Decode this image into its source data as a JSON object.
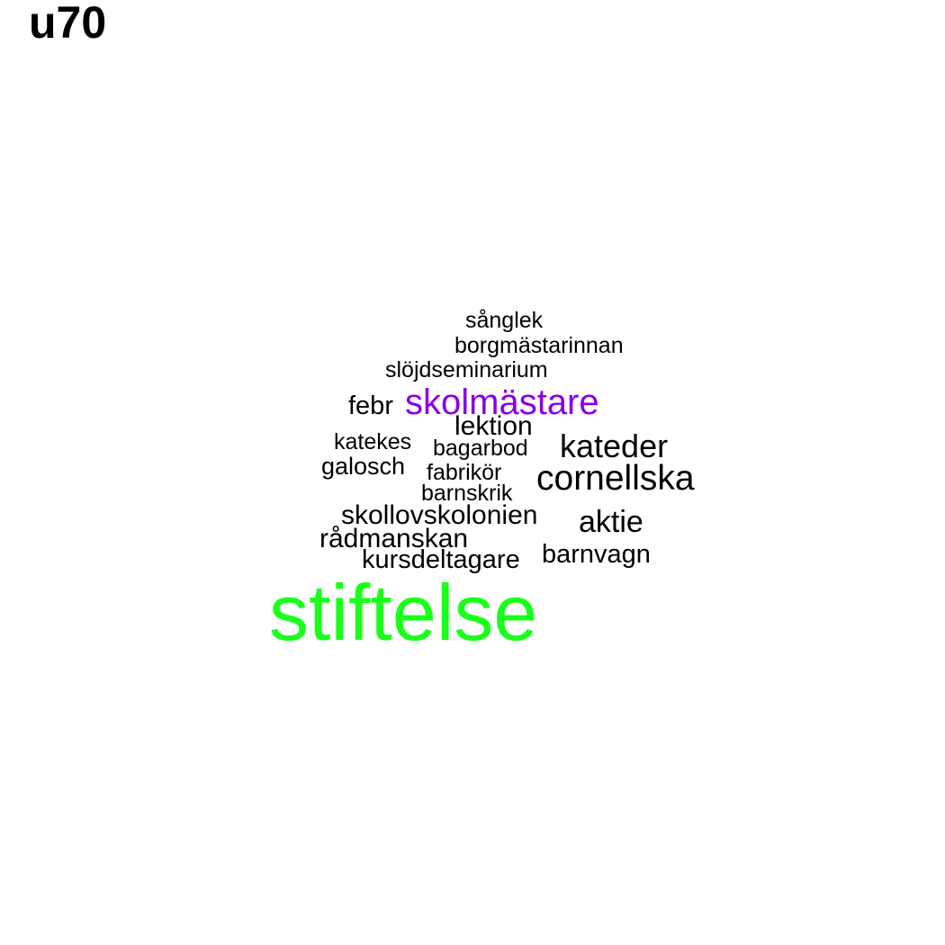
{
  "title": "u70",
  "colors": {
    "default_word": "#000000",
    "skolmastare": "#8a00e6",
    "stiftelse": "#1aff1a"
  },
  "words": [
    {
      "text": "sånglek"
    },
    {
      "text": "borgmästarinnan"
    },
    {
      "text": "slöjdseminarium"
    },
    {
      "text": "febr"
    },
    {
      "text": "skolmästare",
      "color": "#8a00e6"
    },
    {
      "text": "lektion"
    },
    {
      "text": "katekes"
    },
    {
      "text": "bagarbod"
    },
    {
      "text": "kateder"
    },
    {
      "text": "galosch"
    },
    {
      "text": "fabrikör"
    },
    {
      "text": "cornellska"
    },
    {
      "text": "barnskrik"
    },
    {
      "text": "skollovskolonien"
    },
    {
      "text": "aktie"
    },
    {
      "text": "rådmanskan"
    },
    {
      "text": "barnvagn"
    },
    {
      "text": "kursdeltagare"
    },
    {
      "text": "stiftelse",
      "color": "#1aff1a"
    }
  ]
}
